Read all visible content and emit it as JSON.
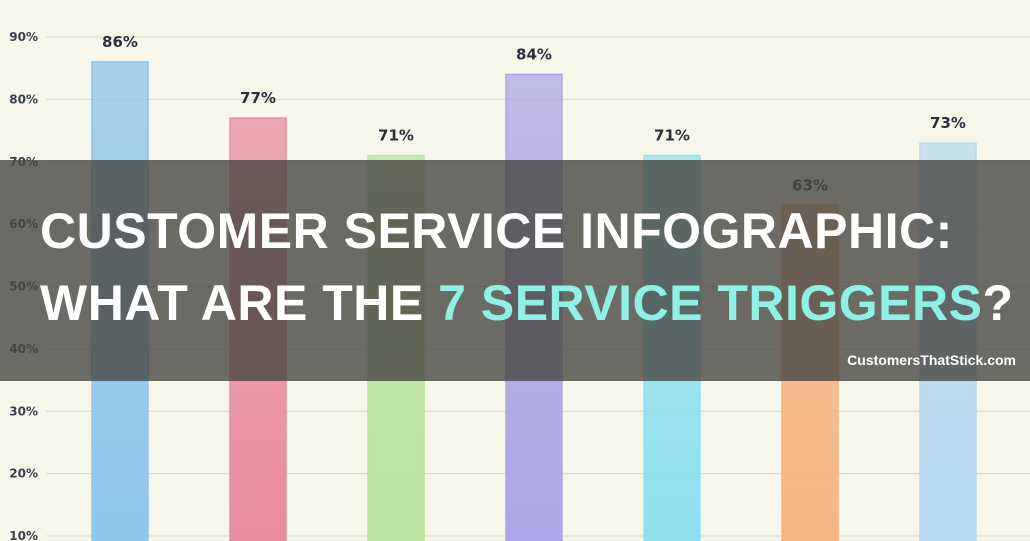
{
  "chart_data": {
    "type": "bar",
    "categories": [
      "",
      "",
      "",
      "",
      "",
      "",
      ""
    ],
    "values": [
      86,
      77,
      71,
      84,
      71,
      63,
      73
    ],
    "value_labels": [
      "86%",
      "77%",
      "71%",
      "84%",
      "71%",
      "63%",
      "73%"
    ],
    "yticks": [
      10,
      20,
      30,
      40,
      50,
      60,
      70,
      80,
      90
    ],
    "ytick_labels": [
      "10%",
      "20%",
      "30%",
      "40%",
      "50%",
      "60%",
      "70%",
      "80%",
      "90%"
    ],
    "ylim": [
      10,
      90
    ],
    "grid": true,
    "colors": [
      "#8ec6ec",
      "#e98d9c",
      "#b9e3a0",
      "#ada6e6",
      "#8fe0ee",
      "#f5b583",
      "#b6d9f0"
    ]
  },
  "banner": {
    "line1": "CUSTOMER SERVICE INFOGRAPHIC:",
    "line2_prefix": "WHAT ARE THE ",
    "line2_accent": "7 SERVICE TRIGGERS",
    "line2_suffix": "?",
    "site": "CustomersThatStick.com",
    "accent_color": "#8ff0e4"
  }
}
